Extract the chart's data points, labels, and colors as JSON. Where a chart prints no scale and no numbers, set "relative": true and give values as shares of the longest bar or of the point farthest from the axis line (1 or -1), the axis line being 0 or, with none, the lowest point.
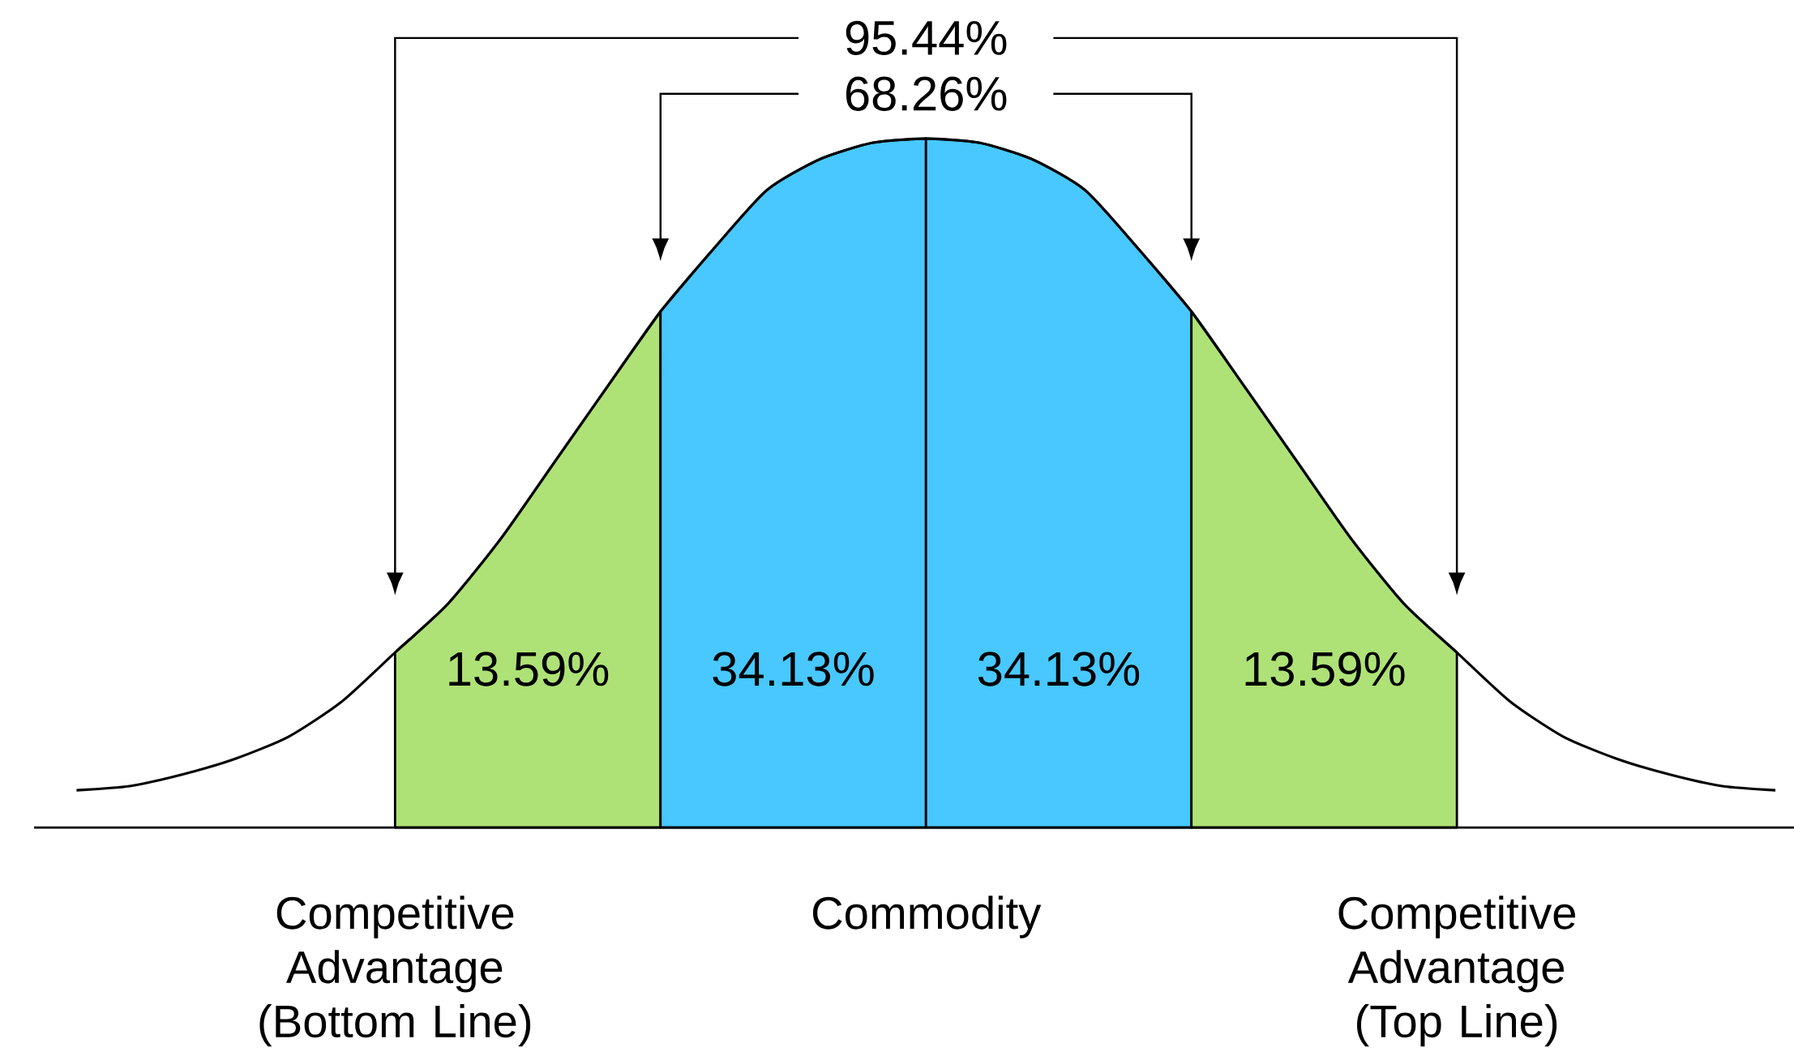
{
  "chart_data": {
    "type": "area",
    "relative": true,
    "categories": [
      null,
      null,
      null,
      null,
      null,
      null,
      null,
      null,
      null,
      null,
      null,
      null,
      null,
      null,
      null,
      null,
      null,
      null,
      null,
      null,
      null,
      null,
      null,
      null,
      null,
      null,
      null,
      null,
      null,
      null,
      null,
      null,
      null
    ],
    "series": [
      {
        "color": "#aee276",
        "values": [
          null,
          null,
          null,
          null,
          null,
          null,
          0.254,
          0.325,
          0.42,
          0.53,
          0.64,
          0.749,
          null,
          null,
          null,
          null,
          null,
          null,
          null,
          null,
          null,
          null,
          null,
          null,
          null,
          null,
          null,
          null,
          null,
          null,
          null,
          null,
          null
        ]
      },
      {
        "color": "#48c8fe",
        "values": [
          null,
          null,
          null,
          null,
          null,
          null,
          null,
          null,
          null,
          null,
          null,
          0.749,
          0.84,
          0.925,
          0.97,
          0.994,
          1.0,
          null,
          null,
          null,
          null,
          null,
          null,
          null,
          null,
          null,
          null,
          null,
          null,
          null,
          null,
          null,
          null
        ]
      },
      {
        "color": "#48c8fe",
        "values": [
          null,
          null,
          null,
          null,
          null,
          null,
          null,
          null,
          null,
          null,
          null,
          null,
          null,
          null,
          null,
          null,
          1.0,
          0.994,
          0.97,
          0.925,
          0.84,
          0.749,
          null,
          null,
          null,
          null,
          null,
          null,
          null,
          null,
          null,
          null,
          null
        ]
      },
      {
        "color": "#aee276",
        "values": [
          null,
          null,
          null,
          null,
          null,
          null,
          null,
          null,
          null,
          null,
          null,
          null,
          null,
          null,
          null,
          null,
          null,
          null,
          null,
          null,
          null,
          0.749,
          0.64,
          0.53,
          0.42,
          0.325,
          0.254,
          null,
          null,
          null,
          null,
          null,
          null
        ]
      },
      {
        "type": "line",
        "color": "#000000",
        "values": [
          0.054,
          0.06,
          0.077,
          0.1,
          0.132,
          0.183,
          0.254,
          0.325,
          0.42,
          0.53,
          0.64,
          0.749,
          0.84,
          0.925,
          0.97,
          0.994,
          1.0,
          0.994,
          0.97,
          0.925,
          0.84,
          0.749,
          0.64,
          0.53,
          0.42,
          0.325,
          0.254,
          0.183,
          0.132,
          0.1,
          0.077,
          0.06,
          0.054
        ]
      }
    ],
    "annotations": [
      "95.44%",
      "68.26%",
      "13.59%",
      "34.13%",
      "34.13%",
      "13.59%",
      "Competitive Advantage (Bottom Line)",
      "Commodity",
      "Competitive Advantage (Top Line)"
    ]
  }
}
